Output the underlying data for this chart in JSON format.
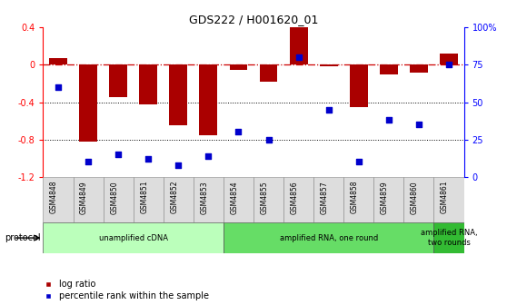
{
  "title": "GDS222 / H001620_01",
  "samples": [
    "GSM4848",
    "GSM4849",
    "GSM4850",
    "GSM4851",
    "GSM4852",
    "GSM4853",
    "GSM4854",
    "GSM4855",
    "GSM4856",
    "GSM4857",
    "GSM4858",
    "GSM4859",
    "GSM4860",
    "GSM4861"
  ],
  "log_ratio": [
    0.07,
    -0.82,
    -0.35,
    -0.42,
    -0.65,
    -0.75,
    -0.05,
    -0.18,
    0.4,
    -0.02,
    -0.45,
    -0.1,
    -0.08,
    0.12
  ],
  "percentile_rank": [
    60,
    10,
    15,
    12,
    8,
    14,
    30,
    25,
    80,
    45,
    10,
    38,
    35,
    75
  ],
  "bar_color": "#aa0000",
  "dot_color": "#0000cc",
  "ylim_left": [
    -1.2,
    0.4
  ],
  "ylim_right": [
    0,
    100
  ],
  "yticks_left": [
    -1.2,
    -0.8,
    -0.4,
    0.0,
    0.4
  ],
  "yticks_right": [
    0,
    25,
    50,
    75,
    100
  ],
  "ytick_labels_right": [
    "0",
    "25",
    "50",
    "75",
    "100%"
  ],
  "hline_color": "#cc0000",
  "dotline_color": "black",
  "protocols": [
    {
      "label": "unamplified cDNA",
      "start": 0,
      "end": 5,
      "color": "#bbffbb"
    },
    {
      "label": "amplified RNA, one round",
      "start": 6,
      "end": 12,
      "color": "#66dd66"
    },
    {
      "label": "amplified RNA,\ntwo rounds",
      "start": 13,
      "end": 13,
      "color": "#33bb33"
    }
  ],
  "legend_bar_label": "log ratio",
  "legend_dot_label": "percentile rank within the sample",
  "protocol_label": "protocol",
  "bg_color": "white",
  "label_box_color": "#dddddd"
}
